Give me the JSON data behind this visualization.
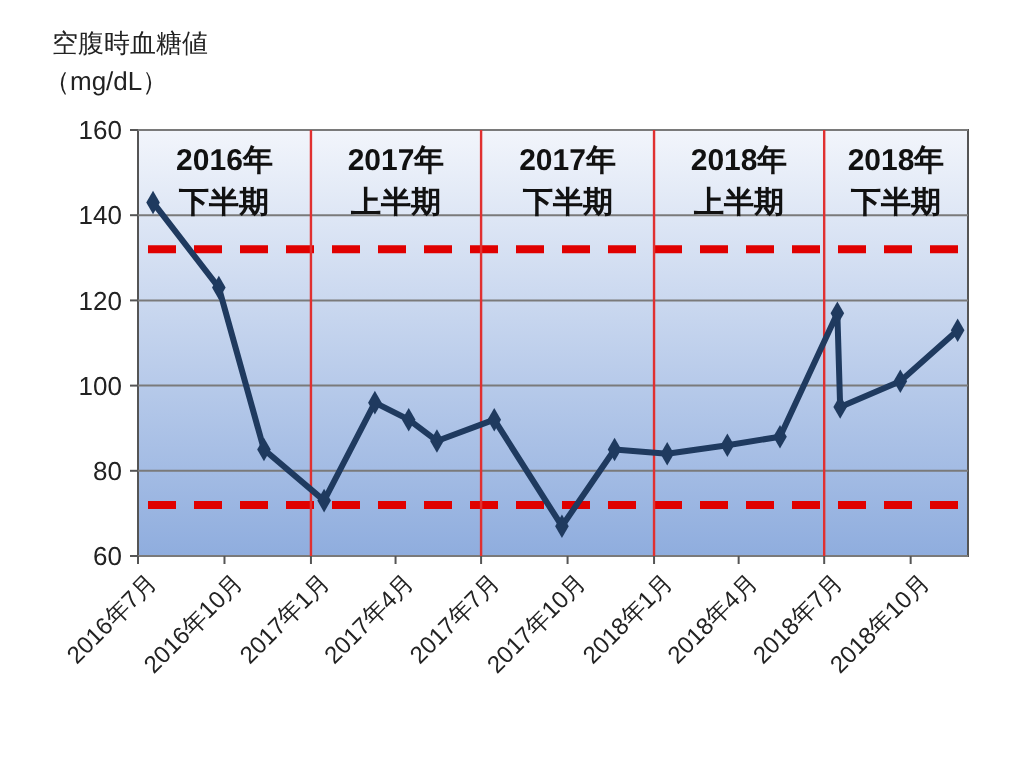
{
  "chart_data": {
    "type": "line",
    "ylabel": "空腹時血糖値（mg/dL）",
    "x": [
      "2016-07-17",
      "2016-09-25",
      "2016-11-12",
      "2017-01-15",
      "2017-03-10",
      "2017-04-15",
      "2017-05-15",
      "2017-07-15",
      "2017-09-25",
      "2017-11-20",
      "2018-01-15",
      "2018-03-20",
      "2018-05-15",
      "2018-07-15",
      "2018-07-18",
      "2018-09-20",
      "2018-11-20"
    ],
    "series": [
      {
        "color": "#1f3a5f",
        "values": [
          143,
          123,
          85,
          73,
          96,
          92,
          87,
          92,
          67,
          85,
          84,
          86,
          88,
          117,
          95,
          101,
          113
        ]
      }
    ],
    "xlim": [
      "2016-07-01",
      "2018-12-01"
    ],
    "xticks": [
      {
        "value": "2016-07-01",
        "label": "2016年7月"
      },
      {
        "value": "2016-10-01",
        "label": "2016年10月"
      },
      {
        "value": "2017-01-01",
        "label": "2017年1月"
      },
      {
        "value": "2017-04-01",
        "label": "2017年4月"
      },
      {
        "value": "2017-07-01",
        "label": "2017年7月"
      },
      {
        "value": "2017-10-01",
        "label": "2017年10月"
      },
      {
        "value": "2018-01-01",
        "label": "2018年1月"
      },
      {
        "value": "2018-04-01",
        "label": "2018年4月"
      },
      {
        "value": "2018-07-01",
        "label": "2018年7月"
      },
      {
        "value": "2018-10-01",
        "label": "2018年10月"
      }
    ],
    "ylim": [
      60,
      160
    ],
    "yticks": [
      60,
      80,
      100,
      120,
      140,
      160
    ],
    "grid": "y",
    "marker": "diamond",
    "line_style": "solid",
    "ref_lines": [
      {
        "axis": "y",
        "value": 132,
        "color": "#e00000",
        "line_style": "dashed"
      },
      {
        "axis": "y",
        "value": 72,
        "color": "#e00000",
        "line_style": "dashed"
      },
      {
        "axis": "x",
        "value": "2017-01-01",
        "color": "#e03030",
        "line_style": "solid"
      },
      {
        "axis": "x",
        "value": "2017-07-01",
        "color": "#e03030",
        "line_style": "solid"
      },
      {
        "axis": "x",
        "value": "2018-01-01",
        "color": "#e03030",
        "line_style": "solid"
      },
      {
        "axis": "x",
        "value": "2018-07-01",
        "color": "#e03030",
        "line_style": "solid"
      }
    ],
    "annotations": [
      "2016年下半期",
      "2017年上半期",
      "2017年下半期",
      "2018年上半期",
      "2018年下半期"
    ]
  }
}
